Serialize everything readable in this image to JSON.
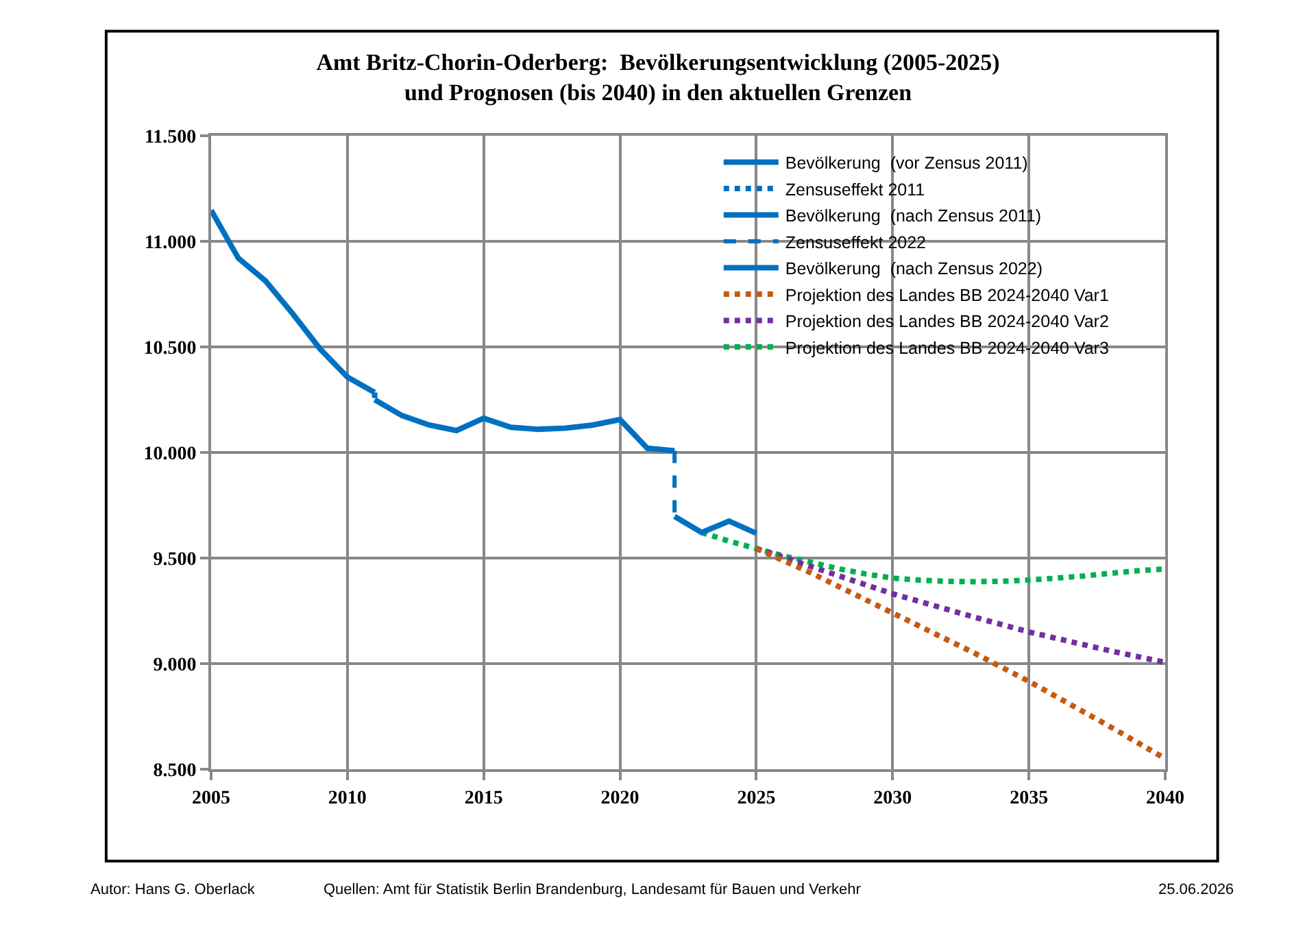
{
  "chart_data": {
    "type": "line",
    "title": "Amt Britz-Chorin-Oderberg:  Bevölkerungsentwicklung (2005-2025)\nund Prognosen (bis 2040) in den aktuellen Grenzen",
    "xlim": [
      2005,
      2040
    ],
    "xticks": [
      2005,
      2010,
      2015,
      2020,
      2025,
      2030,
      2035,
      2040
    ],
    "ylim": [
      8500,
      11500
    ],
    "yticks": [
      {
        "value": 8500,
        "label": "8.500"
      },
      {
        "value": 9000,
        "label": "9.000"
      },
      {
        "value": 9500,
        "label": "9.500"
      },
      {
        "value": 10000,
        "label": "10.000"
      },
      {
        "value": 10500,
        "label": "10.500"
      },
      {
        "value": 11000,
        "label": "11.000"
      },
      {
        "value": 11500,
        "label": "11.500"
      }
    ],
    "grid": true,
    "legend": "top right",
    "marker": "none",
    "series": [
      {
        "name": "Bevölkerung  (vor Zensus 2011)",
        "color": "#0070c0",
        "line_style": "solid",
        "x": [
          2005,
          2006,
          2007,
          2008,
          2009,
          2010,
          2011
        ],
        "values": [
          11147,
          10920,
          10812,
          10656,
          10490,
          10357,
          10284
        ]
      },
      {
        "name": "Zensuseffekt 2011",
        "color": "#0070c0",
        "line_style": "dotted",
        "x": [
          2011,
          2011
        ],
        "values": [
          10284,
          10250
        ]
      },
      {
        "name": "Bevölkerung  (nach Zensus 2011)",
        "color": "#0070c0",
        "line_style": "solid",
        "x": [
          2011,
          2012,
          2013,
          2014,
          2015,
          2016,
          2017,
          2018,
          2019,
          2020,
          2021,
          2022
        ],
        "values": [
          10250,
          10175,
          10130,
          10104,
          10162,
          10119,
          10110,
          10115,
          10130,
          10156,
          10020,
          10008
        ]
      },
      {
        "name": "Zensuseffekt 2022",
        "color": "#0070c0",
        "line_style": "dashed",
        "x": [
          2022,
          2022
        ],
        "values": [
          10008,
          9697
        ]
      },
      {
        "name": "Bevölkerung  (nach Zensus 2022)",
        "color": "#0070c0",
        "line_style": "solid",
        "x": [
          2022,
          2023,
          2024,
          2025
        ],
        "values": [
          9697,
          9621,
          9675,
          9617
        ]
      },
      {
        "name": "Projektion des Landes BB 2024-2040 Var1",
        "color": "#c55a11",
        "line_style": "dotted",
        "x": [
          2025,
          2027,
          2030,
          2033,
          2035,
          2038,
          2040
        ],
        "values": [
          9545,
          9430,
          9240,
          9050,
          8916,
          8700,
          8550
        ]
      },
      {
        "name": "Projektion des Landes BB 2024-2040 Var2",
        "color": "#7030a0",
        "line_style": "dotted",
        "x": [
          2025,
          2027,
          2030,
          2033,
          2035,
          2038,
          2040
        ],
        "values": [
          9545,
          9460,
          9331,
          9220,
          9150,
          9060,
          9006
        ]
      },
      {
        "name": "Projektion des Landes BB 2024-2040 Var3",
        "color": "#00b050",
        "line_style": "dotted",
        "x": [
          2023,
          2024,
          2025,
          2026,
          2027,
          2028,
          2029,
          2030,
          2031,
          2032,
          2033,
          2034,
          2035,
          2036,
          2037,
          2038,
          2039,
          2040
        ],
        "values": [
          9621,
          9580,
          9545,
          9510,
          9480,
          9450,
          9425,
          9405,
          9395,
          9390,
          9388,
          9390,
          9396,
          9405,
          9415,
          9428,
          9440,
          9448
        ]
      }
    ],
    "annotations": [
      "Autor: Hans G. Oberlack",
      "Quellen: Amt für Statistik Berlin Brandenburg, Landesamt für Bauen und Verkehr",
      "25.06.2026"
    ]
  }
}
